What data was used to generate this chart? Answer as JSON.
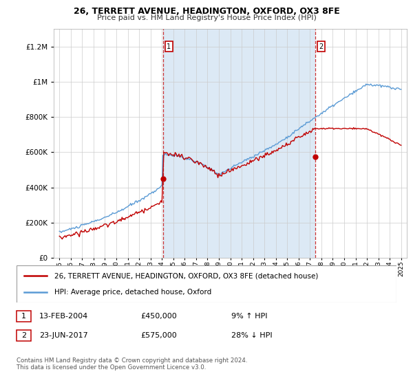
{
  "title_line1": "26, TERRETT AVENUE, HEADINGTON, OXFORD, OX3 8FE",
  "title_line2": "Price paid vs. HM Land Registry's House Price Index (HPI)",
  "legend_line1": "26, TERRETT AVENUE, HEADINGTON, OXFORD, OX3 8FE (detached house)",
  "legend_line2": "HPI: Average price, detached house, Oxford",
  "transaction1_date": "13-FEB-2004",
  "transaction1_price": "£450,000",
  "transaction1_hpi": "9% ↑ HPI",
  "transaction2_date": "23-JUN-2017",
  "transaction2_price": "£575,000",
  "transaction2_hpi": "28% ↓ HPI",
  "footnote": "Contains HM Land Registry data © Crown copyright and database right 2024.\nThis data is licensed under the Open Government Licence v3.0.",
  "hpi_color": "#5b9bd5",
  "price_color": "#c00000",
  "fill_color": "#dce9f5",
  "marker1_x": 2004.12,
  "marker1_y": 450000,
  "marker2_x": 2017.47,
  "marker2_y": 575000,
  "ylim": [
    0,
    1300000
  ],
  "xlim_start": 1994.5,
  "xlim_end": 2025.5,
  "bg_color": "#f0f6ff"
}
